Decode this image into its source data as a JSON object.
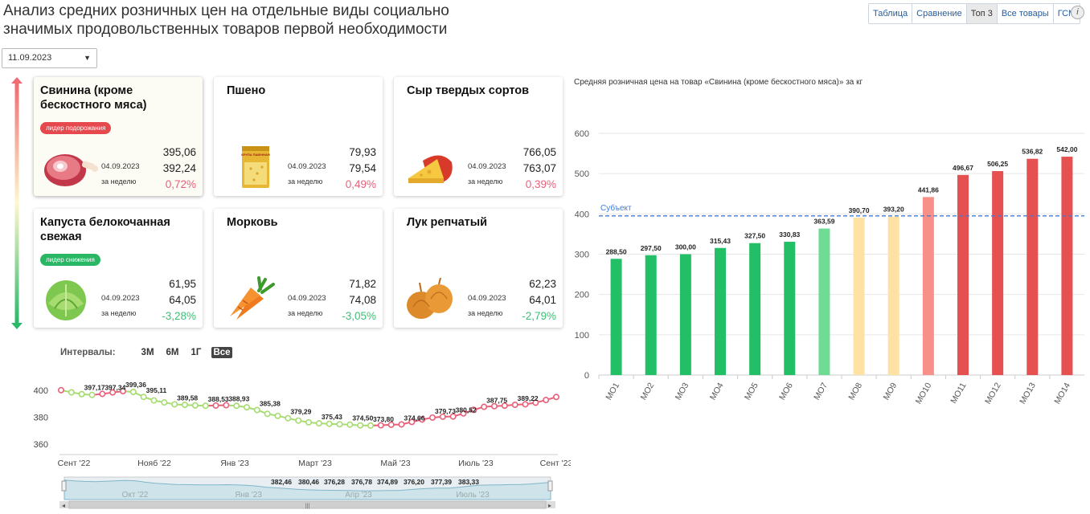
{
  "title": "Анализ средних розничных цен на отдельные виды социально значимых продовольственных товаров первой необходимости",
  "tabs": [
    {
      "label": "Таблица",
      "active": false
    },
    {
      "label": "Сравнение",
      "active": false
    },
    {
      "label": "Топ 3",
      "active": true
    },
    {
      "label": "Все товары",
      "active": false
    },
    {
      "label": "ГСМ",
      "active": false
    }
  ],
  "info_label": "i",
  "date_select": {
    "value": "11.09.2023"
  },
  "cards": [
    {
      "name": "Свинина (кроме бескостного мяса)",
      "badge": "лидер подорожания",
      "badge_color": "#e5484d",
      "date": "04.09.2023",
      "week_label": "за неделю",
      "current": "395,06",
      "previous": "392,24",
      "change": "0,72%",
      "trend": "up",
      "icon": "pork-ham-icon"
    },
    {
      "name": "Пшено",
      "badge": "",
      "date": "04.09.2023",
      "week_label": "за неделю",
      "current": "79,93",
      "previous": "79,54",
      "change": "0,49%",
      "trend": "up",
      "icon": "millet-package-icon",
      "package_text": "КРУПА ПШЕННАЯ"
    },
    {
      "name": "Сыр твердых сортов",
      "badge": "",
      "date": "04.09.2023",
      "week_label": "за неделю",
      "current": "766,05",
      "previous": "763,07",
      "change": "0,39%",
      "trend": "up",
      "icon": "cheese-icon"
    },
    {
      "name": "Капуста белокочанная свежая",
      "badge": "лидер снижения",
      "badge_color": "#29b765",
      "date": "04.09.2023",
      "week_label": "за неделю",
      "current": "61,95",
      "previous": "64,05",
      "change": "-3,28%",
      "trend": "down",
      "icon": "cabbage-icon"
    },
    {
      "name": "Морковь",
      "badge": "",
      "date": "04.09.2023",
      "week_label": "за неделю",
      "current": "71,82",
      "previous": "74,08",
      "change": "-3,05%",
      "trend": "down",
      "icon": "carrot-icon"
    },
    {
      "name": "Лук репчатый",
      "badge": "",
      "date": "04.09.2023",
      "week_label": "за неделю",
      "current": "62,23",
      "previous": "64,01",
      "change": "-2,79%",
      "trend": "down",
      "icon": "onion-icon"
    }
  ],
  "intervals": {
    "label": "Интервалы:",
    "options": [
      "3М",
      "6М",
      "1Г",
      "Все"
    ],
    "active": "Все"
  },
  "colors": {
    "up": "#e8607a",
    "down": "#3fbf76",
    "accent": "#1f5ea8",
    "high": "#e55050",
    "low": "#22bf66"
  },
  "chart_data": [
    {
      "type": "bar",
      "title": "Средняя розничная цена на товар «Свинина (кроме бескостного мяса)» за кг",
      "categories": [
        "МО1",
        "МО2",
        "МО3",
        "МО4",
        "МО5",
        "МО6",
        "МО7",
        "МО8",
        "МО9",
        "МО10",
        "МО11",
        "МО12",
        "МО13",
        "МО14"
      ],
      "values": [
        288.5,
        297.5,
        300.0,
        315.43,
        327.5,
        330.83,
        363.59,
        390.7,
        393.2,
        441.86,
        496.67,
        506.25,
        536.82,
        542.0
      ],
      "value_labels": [
        "288,50",
        "297,50",
        "300,00",
        "315,43",
        "327,50",
        "330,83",
        "363,59",
        "390,70",
        "393,20",
        "441,86",
        "496,67",
        "506,25",
        "536,82",
        "542,00"
      ],
      "bar_colors": [
        "#22bf66",
        "#22bf66",
        "#22bf66",
        "#22bf66",
        "#22bf66",
        "#22bf66",
        "#6edc94",
        "#fde2a4",
        "#fde2a4",
        "#f79088",
        "#e55050",
        "#e55050",
        "#e55050",
        "#e55050"
      ],
      "ylim": [
        0,
        600
      ],
      "yticks": [
        0,
        100,
        200,
        300,
        400,
        500,
        600
      ],
      "reference_line": {
        "label": "Субъект",
        "value": 395.06
      },
      "grid": true
    },
    {
      "type": "line",
      "x_ticks": [
        "Сент '22",
        "Нояб '22",
        "Янв '23",
        "Март '23",
        "Май '23",
        "Июль '23",
        "Сент '23"
      ],
      "ylim": [
        360,
        400
      ],
      "yticks": [
        360,
        380,
        400
      ],
      "values": [
        400.1,
        398.5,
        397.17,
        396.6,
        397.34,
        398.4,
        399.36,
        398.8,
        395.11,
        392.5,
        391.0,
        389.58,
        389.2,
        388.8,
        388.53,
        388.7,
        388.93,
        388.5,
        387.4,
        385.38,
        382.5,
        381.0,
        379.29,
        377.5,
        376.2,
        375.43,
        375.1,
        374.8,
        374.5,
        373.9,
        373.8,
        374.0,
        374.4,
        374.66,
        376.5,
        378.3,
        379.73,
        380.4,
        380.52,
        382.8,
        385.5,
        387.75,
        388.2,
        388.6,
        389.22,
        389.6,
        390.8,
        392.8,
        395.06
      ],
      "value_labels": [
        {
          "index": 2,
          "label": "397,17"
        },
        {
          "index": 4,
          "label": "397,34"
        },
        {
          "index": 6,
          "label": "399,36"
        },
        {
          "index": 8,
          "label": "395,11"
        },
        {
          "index": 11,
          "label": "389,58"
        },
        {
          "index": 14,
          "label": "388,53"
        },
        {
          "index": 16,
          "label": "388,93"
        },
        {
          "index": 19,
          "label": "385,38"
        },
        {
          "index": 22,
          "label": "379,29"
        },
        {
          "index": 25,
          "label": "375,43"
        },
        {
          "index": 28,
          "label": "374,50"
        },
        {
          "index": 30,
          "label": "373,80"
        },
        {
          "index": 33,
          "label": "374,66"
        },
        {
          "index": 36,
          "label": "379,73"
        },
        {
          "index": 38,
          "label": "380,52"
        },
        {
          "index": 41,
          "label": "387,75"
        },
        {
          "index": 44,
          "label": "389,22"
        }
      ],
      "navigator": {
        "x_ticks": [
          "Окт '22",
          "Янв '23",
          "Апр '23",
          "Июль '23"
        ],
        "labels": [
          "382,46",
          "380,46",
          "376,28",
          "376,78",
          "374,89",
          "376,20",
          "377,39",
          "383,33"
        ]
      }
    }
  ]
}
